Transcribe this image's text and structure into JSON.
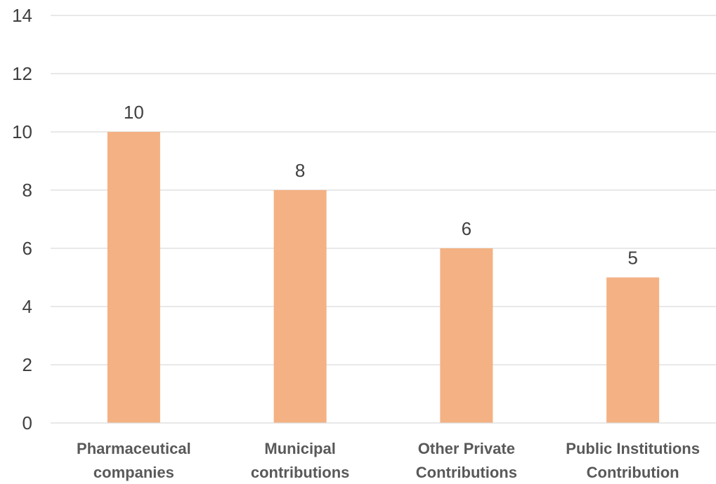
{
  "chart_data": {
    "type": "bar",
    "title": "",
    "xlabel": "",
    "ylabel": "",
    "categories": [
      [
        "Pharmaceutical",
        "companies"
      ],
      [
        "Municipal",
        "contributions"
      ],
      [
        "Other Private",
        "Contributions"
      ],
      [
        "Public Institutions",
        "Contribution"
      ]
    ],
    "values": [
      10,
      8,
      6,
      5
    ],
    "data_labels": [
      "10",
      "8",
      "6",
      "5"
    ],
    "ylim": [
      0,
      14
    ],
    "yticks": [
      0,
      2,
      4,
      6,
      8,
      10,
      12,
      14
    ],
    "ytick_labels": [
      "0",
      "2",
      "4",
      "6",
      "8",
      "10",
      "12",
      "14"
    ],
    "grid": true,
    "legend": "none",
    "bar_color": "#f4b183"
  }
}
